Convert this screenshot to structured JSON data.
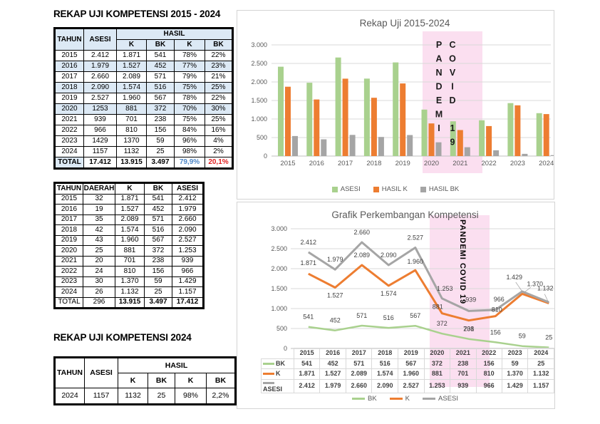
{
  "colors": {
    "green": "#A9D18E",
    "orange": "#ED7D31",
    "gray": "#A5A5A5",
    "pink": "#FBDFF0",
    "header_blue": "#DCE9F5",
    "total_blue": "#4E86C6",
    "total_red": "#E02020"
  },
  "left": {
    "title1": "REKAP UJI KOMPETENSI 2015 - 2024",
    "title2": "REKAP UJI KOMPETENSI 2024",
    "table1": {
      "header": {
        "tahun": "TAHUN",
        "asesi": "ASESI",
        "hasil": "HASIL",
        "sub": [
          "K",
          "BK",
          "K",
          "BK"
        ]
      },
      "rows": [
        {
          "values": [
            "2015",
            "2.412",
            "1.871",
            "541",
            "78%",
            "22%"
          ],
          "shaded": false
        },
        {
          "values": [
            "2016",
            "1.979",
            "1.527",
            "452",
            "77%",
            "23%"
          ],
          "shaded": true
        },
        {
          "values": [
            "2017",
            "2.660",
            "2.089",
            "571",
            "79%",
            "21%"
          ],
          "shaded": false
        },
        {
          "values": [
            "2018",
            "2.090",
            "1.574",
            "516",
            "75%",
            "25%"
          ],
          "shaded": true
        },
        {
          "values": [
            "2019",
            "2.527",
            "1.960",
            "567",
            "78%",
            "22%"
          ],
          "shaded": false
        },
        {
          "values": [
            "2020",
            "1253",
            "881",
            "372",
            "70%",
            "30%"
          ],
          "shaded": true
        },
        {
          "values": [
            "2021",
            "939",
            "701",
            "238",
            "75%",
            "25%"
          ],
          "shaded": false
        },
        {
          "values": [
            "2022",
            "966",
            "810",
            "156",
            "84%",
            "16%"
          ],
          "shaded": false
        },
        {
          "values": [
            "2023",
            "1429",
            "1370",
            "59",
            "96%",
            "4%"
          ],
          "shaded": false
        },
        {
          "values": [
            "2024",
            "1157",
            "1132",
            "25",
            "98%",
            "2%"
          ],
          "shaded": false
        }
      ],
      "total": [
        "TOTAL",
        "17.412",
        "13.915",
        "3.497",
        "79,9%",
        "20,1%"
      ]
    },
    "table2": {
      "headers": [
        "TAHUN",
        "DAERAH",
        "K",
        "BK",
        "ASESI"
      ],
      "rows": [
        [
          "2015",
          "32",
          "1.871",
          "541",
          "2.412"
        ],
        [
          "2016",
          "19",
          "1.527",
          "452",
          "1.979"
        ],
        [
          "2017",
          "35",
          "2.089",
          "571",
          "2.660"
        ],
        [
          "2018",
          "42",
          "1.574",
          "516",
          "2.090"
        ],
        [
          "2019",
          "43",
          "1.960",
          "567",
          "2.527"
        ],
        [
          "2020",
          "25",
          "881",
          "372",
          "1.253"
        ],
        [
          "2021",
          "20",
          "701",
          "238",
          "939"
        ],
        [
          "2022",
          "24",
          "810",
          "156",
          "966"
        ],
        [
          "2023",
          "30",
          "1.370",
          "59",
          "1.429"
        ],
        [
          "2024",
          "26",
          "1.132",
          "25",
          "1.157"
        ]
      ],
      "total": [
        "TOTAL",
        "296",
        "13.915",
        "3.497",
        "17.412"
      ]
    },
    "table3": {
      "header": {
        "tahun": "TAHUN",
        "asesi": "ASESI",
        "hasil": "HASIL",
        "sub": [
          "K",
          "BK",
          "K",
          "BK"
        ]
      },
      "row": [
        "2024",
        "1157",
        "1132",
        "25",
        "98%",
        "2,2%"
      ]
    }
  },
  "chart_data": [
    {
      "type": "bar",
      "title": "Rekap Uji 2015-2024",
      "categories": [
        "2015",
        "2016",
        "2017",
        "2018",
        "2019",
        "2020",
        "2021",
        "2022",
        "2023",
        "2024"
      ],
      "series": [
        {
          "name": "ASESI",
          "color": "#A9D18E",
          "values": [
            2412,
            1979,
            2660,
            2090,
            2527,
            1253,
            939,
            966,
            1429,
            1157
          ]
        },
        {
          "name": "HASIL K",
          "color": "#ED7D31",
          "values": [
            1871,
            1527,
            2089,
            1574,
            1960,
            881,
            701,
            810,
            1370,
            1132
          ]
        },
        {
          "name": "HASIL BK",
          "color": "#A5A5A5",
          "values": [
            541,
            452,
            571,
            516,
            567,
            372,
            238,
            156,
            59,
            25
          ]
        }
      ],
      "ylim": [
        0,
        3000
      ],
      "yticks": [
        "0",
        "500",
        "1.000",
        "1.500",
        "2.000",
        "2.500",
        "3.000"
      ],
      "grid": true,
      "legend_position": "bottom",
      "annotation": {
        "columns": [
          "PANDEMI",
          "COVID 19"
        ],
        "span": [
          "2020",
          "2021"
        ],
        "fill": "#FBDFF0"
      }
    },
    {
      "type": "line",
      "title": "Grafik Perkembangan Kompetensi",
      "categories": [
        "2015",
        "2016",
        "2017",
        "2018",
        "2019",
        "2020",
        "2021",
        "2022",
        "2023",
        "2024"
      ],
      "series": [
        {
          "name": "BK",
          "color": "#A9D18E",
          "values": [
            541,
            452,
            571,
            516,
            567,
            372,
            238,
            156,
            59,
            25
          ],
          "labels": [
            "541",
            "452",
            "571",
            "516",
            "567",
            "372",
            "238",
            "156",
            "59",
            "25"
          ]
        },
        {
          "name": "K",
          "color": "#ED7D31",
          "values": [
            1871,
            1527,
            2089,
            1574,
            1960,
            881,
            701,
            810,
            1370,
            1132
          ],
          "labels": [
            "1.871",
            "1.527",
            "2.089",
            "1.574",
            "1.960",
            "881",
            "701",
            "810",
            "1.370",
            "1.132"
          ]
        },
        {
          "name": "ASESI",
          "color": "#A5A5A5",
          "values": [
            2412,
            1979,
            2660,
            2090,
            2527,
            1253,
            939,
            966,
            1429,
            1157
          ],
          "labels": [
            "2.412",
            "1.979",
            "2.660",
            "2.090",
            "2.527",
            "1.253",
            "939",
            "966",
            "1.429",
            "1.157"
          ]
        }
      ],
      "ylim": [
        0,
        3000
      ],
      "yticks": [
        "0",
        "500",
        "1.000",
        "1.500",
        "2.000",
        "2.500",
        "3.000"
      ],
      "grid": true,
      "data_table": true,
      "legend_position": "bottom",
      "annotation": {
        "text": "PANDEMI COVID 19",
        "span": [
          "2020",
          "2021"
        ],
        "fill": "#FBDFF0"
      }
    }
  ]
}
